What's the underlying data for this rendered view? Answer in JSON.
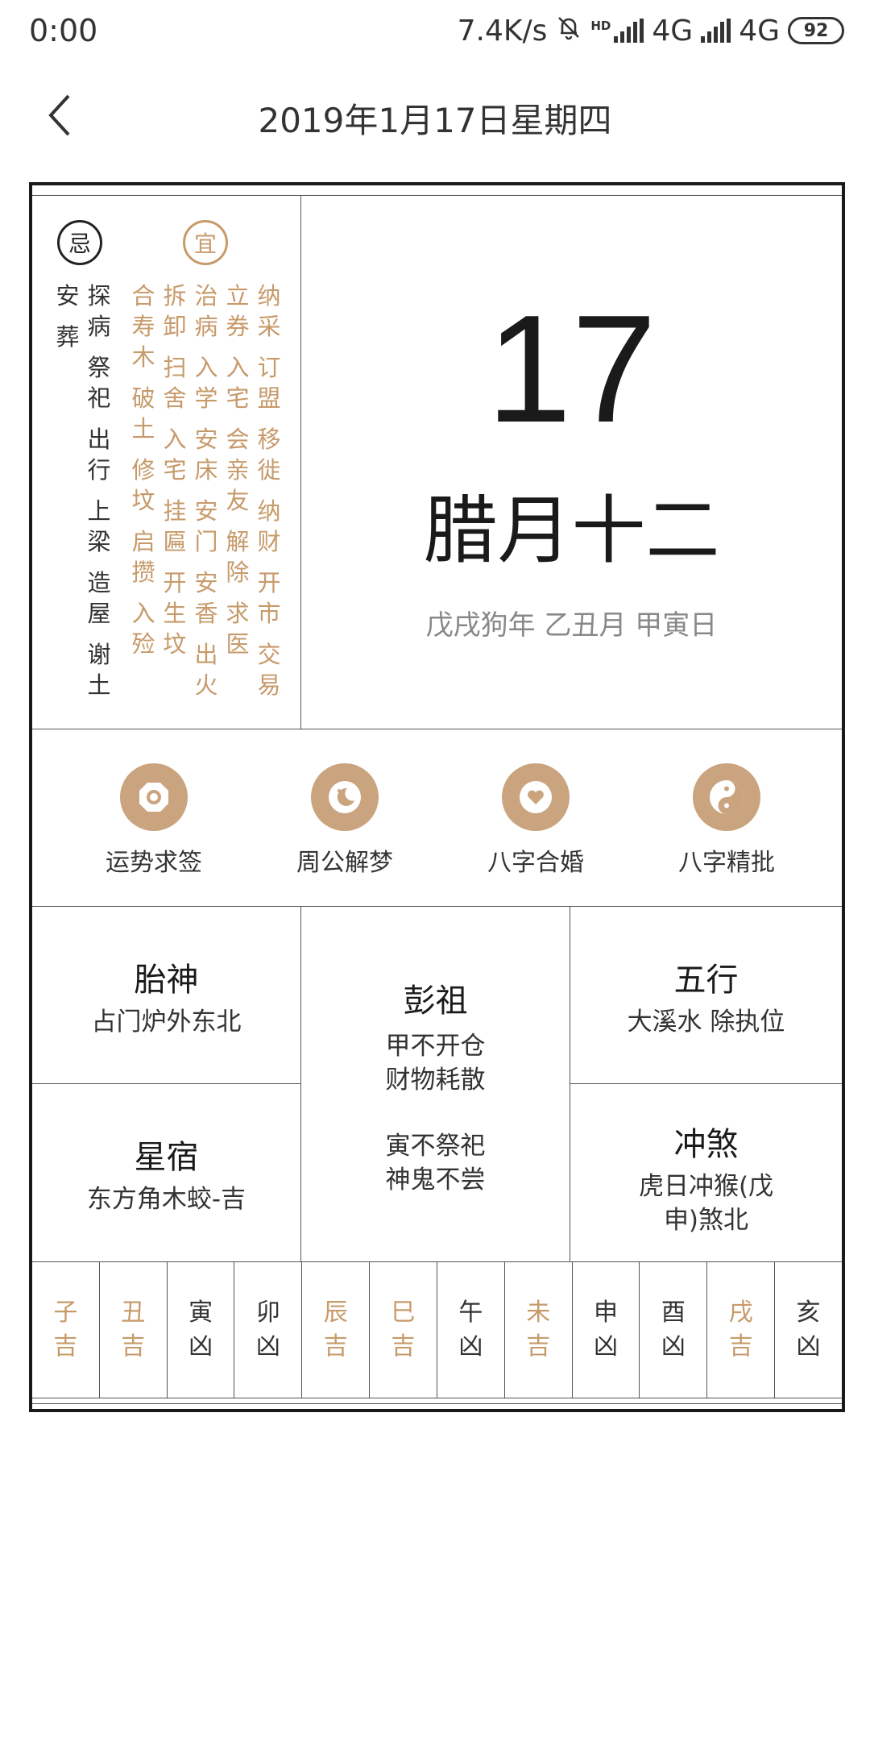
{
  "status_bar": {
    "time": "0:00",
    "net_speed": "7.4K/s",
    "hd": "HD",
    "network1": "4G",
    "network2": "4G",
    "battery": "92"
  },
  "header": {
    "title": "2019年1月17日星期四",
    "back_icon": "chevron-left-icon"
  },
  "yiji": {
    "ji_label": "忌",
    "yi_label": "宜",
    "ji_columns": [
      [
        "安",
        "葬"
      ],
      [
        "探",
        "病",
        "祭",
        "祀",
        "出",
        "行",
        "上",
        "梁",
        "造",
        "屋",
        "谢",
        "土"
      ]
    ],
    "yi_columns": [
      [
        "合",
        "寿",
        "木",
        "破",
        "土",
        "修",
        "坟",
        "启",
        "攒",
        "入",
        "殓"
      ],
      [
        "拆",
        "卸",
        "扫",
        "舍",
        "入",
        "宅",
        "挂",
        "匾",
        "开",
        "生",
        "坟"
      ],
      [
        "治",
        "病",
        "入",
        "学",
        "安",
        "床",
        "安",
        "门",
        "安",
        "香",
        "出",
        "火"
      ],
      [
        "立",
        "券",
        "入",
        "宅",
        "会",
        "亲",
        "友",
        "解",
        "除",
        "求",
        "医"
      ],
      [
        "纳",
        "采",
        "订",
        "盟",
        "移",
        "徙",
        "纳",
        "财",
        "开",
        "市",
        "交",
        "易"
      ]
    ]
  },
  "date": {
    "day": "17",
    "lunar": "腊月十二",
    "ganzhi": "戊戌狗年 乙丑月 甲寅日"
  },
  "tools": [
    {
      "label": "运势求签",
      "icon": "fortune-stick-icon"
    },
    {
      "label": "周公解梦",
      "icon": "moon-dream-icon"
    },
    {
      "label": "八字合婚",
      "icon": "heart-icon"
    },
    {
      "label": "八字精批",
      "icon": "yin-yang-icon"
    }
  ],
  "info": {
    "taishen": {
      "title": "胎神",
      "text": "占门炉外东北"
    },
    "xingxiu": {
      "title": "星宿",
      "text": "东方角木蛟-吉"
    },
    "pengzu": {
      "title": "彭祖",
      "line1": "甲不开仓",
      "line2": "财物耗散",
      "line3": "寅不祭祀",
      "line4": "神鬼不尝"
    },
    "wuxing": {
      "title": "五行",
      "text": "大溪水 除执位"
    },
    "chongsha": {
      "title": "冲煞",
      "line1": "虎日冲猴(戊",
      "line2": "申)煞北"
    }
  },
  "branches": [
    {
      "name": "子",
      "luck": "吉",
      "good": true
    },
    {
      "name": "丑",
      "luck": "吉",
      "good": true
    },
    {
      "name": "寅",
      "luck": "凶",
      "good": false
    },
    {
      "name": "卯",
      "luck": "凶",
      "good": false
    },
    {
      "name": "辰",
      "luck": "吉",
      "good": true
    },
    {
      "name": "巳",
      "luck": "吉",
      "good": true
    },
    {
      "name": "午",
      "luck": "凶",
      "good": false
    },
    {
      "name": "未",
      "luck": "吉",
      "good": true
    },
    {
      "name": "申",
      "luck": "凶",
      "good": false
    },
    {
      "name": "酉",
      "luck": "凶",
      "good": false
    },
    {
      "name": "戌",
      "luck": "吉",
      "good": true
    },
    {
      "name": "亥",
      "luck": "凶",
      "good": false
    }
  ],
  "colors": {
    "gold": "#c79a6a",
    "icon_bg": "#c9a47e",
    "text_dark": "#1a1a1a",
    "text_gray": "#888888"
  }
}
